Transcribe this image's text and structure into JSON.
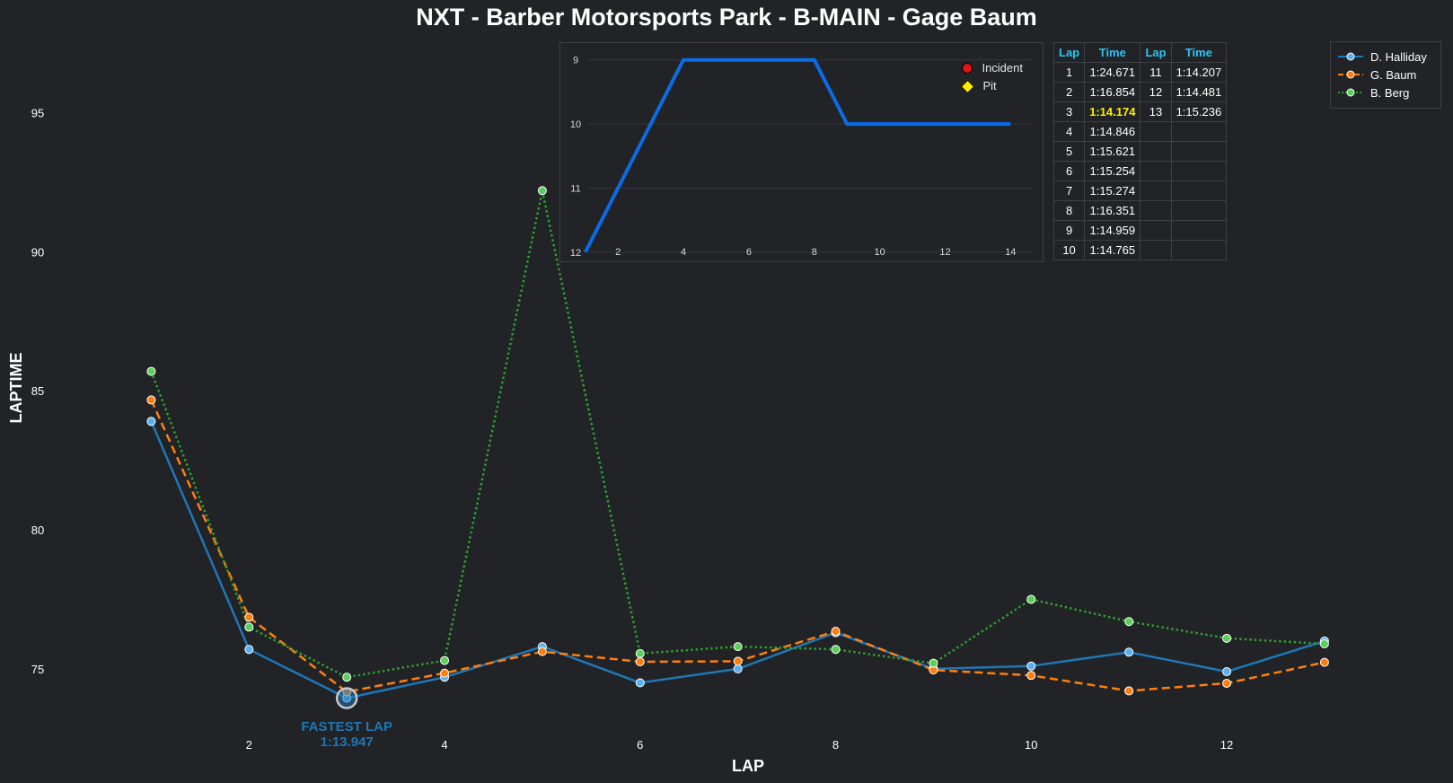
{
  "chart_data": [
    {
      "type": "line",
      "title": "NXT - Barber Motorsports Park - B-MAIN - Gage Baum",
      "xlabel": "LAP",
      "ylabel": "LAPTIME",
      "x": [
        1,
        2,
        3,
        4,
        5,
        6,
        7,
        8,
        9,
        10,
        11,
        12,
        13
      ],
      "xlim": [
        0.05,
        13.8
      ],
      "ylim": [
        72.8,
        97.7
      ],
      "x_ticks": [
        2,
        4,
        6,
        8,
        10,
        12
      ],
      "y_ticks": [
        75,
        80,
        85,
        90,
        95
      ],
      "grid": false,
      "legend_position": "top-right",
      "series": [
        {
          "name": "D. Halliday",
          "color": "#1f77b4",
          "style": "solid",
          "values": [
            83.9,
            75.7,
            73.947,
            74.7,
            75.8,
            74.5,
            75.0,
            76.3,
            75.0,
            75.1,
            75.6,
            74.9,
            76.0
          ]
        },
        {
          "name": "G. Baum",
          "color": "#ff7f0e",
          "style": "dashed",
          "values": [
            84.671,
            76.854,
            74.174,
            74.846,
            75.621,
            75.254,
            75.274,
            76.351,
            74.959,
            74.765,
            74.207,
            74.481,
            75.236
          ]
        },
        {
          "name": "B. Berg",
          "color": "#2ca02c",
          "style": "dotted",
          "values": [
            85.7,
            76.5,
            74.7,
            75.3,
            92.2,
            75.55,
            75.8,
            75.7,
            75.2,
            77.5,
            76.7,
            76.1,
            75.9
          ]
        }
      ],
      "annotation": {
        "label": "FASTEST LAP",
        "time": "1:13.947",
        "x": 3,
        "y": 73.947,
        "color": "#1f77b4"
      }
    },
    {
      "type": "line",
      "title": "",
      "xlabel": "",
      "ylabel": "",
      "x": [
        1,
        2,
        3,
        4,
        5,
        6,
        7,
        8,
        9,
        10,
        11,
        12,
        13,
        14
      ],
      "values": [
        12,
        11,
        10,
        9,
        9,
        9,
        9,
        9,
        10,
        10,
        10,
        10,
        10,
        10
      ],
      "color": "#0a6ce6",
      "xlim": [
        0.65,
        14.65
      ],
      "ylim": [
        12.1,
        8.85
      ],
      "y_inverted": true,
      "x_ticks": [
        2,
        4,
        6,
        8,
        10,
        12,
        14
      ],
      "y_ticks": [
        9,
        10,
        11,
        12
      ],
      "legend": [
        {
          "label": "Incident",
          "marker": "circle",
          "color": "#e61414"
        },
        {
          "label": "Pit",
          "marker": "diamond",
          "color": "#ffee00"
        }
      ]
    }
  ],
  "lap_table": {
    "headers": [
      "Lap",
      "Time",
      "Lap",
      "Time"
    ],
    "rows": [
      [
        "1",
        "1:24.671",
        "11",
        "1:14.207"
      ],
      [
        "2",
        "1:16.854",
        "12",
        "1:14.481"
      ],
      [
        "3",
        "1:14.174",
        "13",
        "1:15.236"
      ],
      [
        "4",
        "1:14.846",
        "",
        ""
      ],
      [
        "5",
        "1:15.621",
        "",
        ""
      ],
      [
        "6",
        "1:15.254",
        "",
        ""
      ],
      [
        "7",
        "1:15.274",
        "",
        ""
      ],
      [
        "8",
        "1:16.351",
        "",
        ""
      ],
      [
        "9",
        "1:14.959",
        "",
        ""
      ],
      [
        "10",
        "1:14.765",
        "",
        ""
      ]
    ],
    "best_row": 2,
    "header_color": "#2ec4f0",
    "best_color": "#ffee00"
  },
  "colors": {
    "background": "#212327",
    "border": "#3d4045"
  }
}
